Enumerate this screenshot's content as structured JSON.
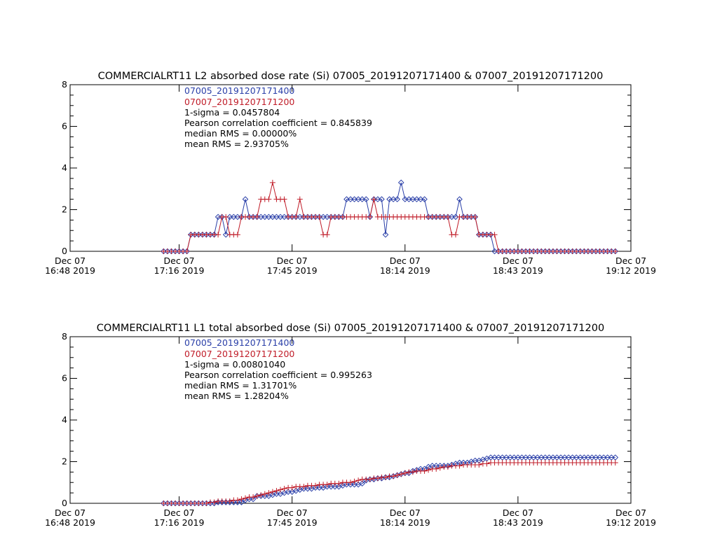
{
  "chart_data": [
    {
      "type": "line",
      "title": "COMMERCIALRT11 L2 absorbed dose rate (Si) 07005_20191207171400 & 07007_20191207171200",
      "xlabel": "",
      "ylabel": "",
      "xlim": [
        0,
        144
      ],
      "ylim": [
        0,
        8
      ],
      "grid": false,
      "legend_position": "top-left",
      "x_ticks": [
        {
          "value": 0,
          "label": "Dec 07\n16:48 2019"
        },
        {
          "value": 28,
          "label": "Dec 07\n17:16 2019"
        },
        {
          "value": 57,
          "label": "Dec 07\n17:45 2019"
        },
        {
          "value": 86,
          "label": "Dec 07\n18:14 2019"
        },
        {
          "value": 115,
          "label": "Dec 07\n18:43 2019"
        },
        {
          "value": 144,
          "label": "Dec 07\n19:12 2019"
        }
      ],
      "y_ticks": [
        0,
        2,
        4,
        6,
        8
      ],
      "annotations": [
        "1-sigma = 0.0457804",
        "Pearson correlation coefficient = 0.845839",
        "median RMS = 0.00000%",
        "mean RMS = 2.93705%"
      ],
      "series": [
        {
          "name": "07005_20191207171400",
          "color": "#2a3fa8",
          "marker": "diamond",
          "x": [
            24,
            25,
            26,
            27,
            28,
            29,
            30,
            31,
            32,
            33,
            34,
            35,
            36,
            37,
            38,
            39,
            40,
            41,
            42,
            43,
            44,
            45,
            46,
            47,
            48,
            49,
            50,
            51,
            52,
            53,
            54,
            55,
            56,
            57,
            58,
            59,
            60,
            61,
            62,
            63,
            64,
            65,
            66,
            67,
            68,
            69,
            70,
            71,
            72,
            73,
            74,
            75,
            76,
            77,
            78,
            79,
            80,
            81,
            82,
            83,
            84,
            85,
            86,
            87,
            88,
            89,
            90,
            91,
            92,
            93,
            94,
            95,
            96,
            97,
            98,
            99,
            100,
            101,
            102,
            103,
            104,
            105,
            106,
            107,
            108,
            109,
            110,
            111,
            112,
            113,
            114,
            115,
            116,
            117,
            118,
            119,
            120,
            121,
            122,
            123,
            124,
            125,
            126,
            127,
            128,
            129,
            130,
            131,
            132,
            133,
            134,
            135,
            136,
            137,
            138,
            139,
            140
          ],
          "y": [
            0,
            0,
            0,
            0,
            0,
            0,
            0,
            0.8,
            0.8,
            0.8,
            0.8,
            0.8,
            0.8,
            0.8,
            1.65,
            1.65,
            0.8,
            1.65,
            1.65,
            1.65,
            1.65,
            2.5,
            1.65,
            1.65,
            1.65,
            1.65,
            1.65,
            1.65,
            1.65,
            1.65,
            1.65,
            1.65,
            1.65,
            1.65,
            1.65,
            1.65,
            1.65,
            1.65,
            1.65,
            1.65,
            1.65,
            1.65,
            1.65,
            1.65,
            1.65,
            1.65,
            1.65,
            2.5,
            2.5,
            2.5,
            2.5,
            2.5,
            2.5,
            1.65,
            2.5,
            2.5,
            2.5,
            0.8,
            2.5,
            2.5,
            2.5,
            3.3,
            2.5,
            2.5,
            2.5,
            2.5,
            2.5,
            2.5,
            1.65,
            1.65,
            1.65,
            1.65,
            1.65,
            1.65,
            1.65,
            1.65,
            2.5,
            1.65,
            1.65,
            1.65,
            1.65,
            0.8,
            0.8,
            0.8,
            0.8,
            0,
            0,
            0,
            0,
            0,
            0,
            0,
            0,
            0,
            0,
            0,
            0,
            0,
            0,
            0,
            0,
            0,
            0,
            0,
            0,
            0,
            0,
            0,
            0,
            0,
            0,
            0,
            0,
            0,
            0,
            0,
            0
          ]
        },
        {
          "name": "07007_20191207171200",
          "color": "#c01c28",
          "marker": "plus",
          "x": [
            24,
            25,
            26,
            27,
            28,
            29,
            30,
            31,
            32,
            33,
            34,
            35,
            36,
            37,
            38,
            39,
            40,
            41,
            42,
            43,
            44,
            45,
            46,
            47,
            48,
            49,
            50,
            51,
            52,
            53,
            54,
            55,
            56,
            57,
            58,
            59,
            60,
            61,
            62,
            63,
            64,
            65,
            66,
            67,
            68,
            69,
            70,
            71,
            72,
            73,
            74,
            75,
            76,
            77,
            78,
            79,
            80,
            81,
            82,
            83,
            84,
            85,
            86,
            87,
            88,
            89,
            90,
            91,
            92,
            93,
            94,
            95,
            96,
            97,
            98,
            99,
            100,
            101,
            102,
            103,
            104,
            105,
            106,
            107,
            108,
            109,
            110,
            111,
            112,
            113,
            114,
            115,
            116,
            117,
            118,
            119,
            120,
            121,
            122,
            123,
            124,
            125,
            126,
            127,
            128,
            129,
            130,
            131,
            132,
            133,
            134,
            135,
            136,
            137,
            138,
            139,
            140
          ],
          "y": [
            0,
            0,
            0,
            0,
            0,
            0,
            0,
            0.8,
            0.8,
            0.8,
            0.8,
            0.8,
            0.8,
            0.8,
            0.8,
            1.65,
            1.65,
            0.8,
            0.8,
            0.8,
            1.65,
            1.65,
            1.65,
            1.65,
            1.65,
            2.5,
            2.5,
            2.5,
            3.3,
            2.5,
            2.5,
            2.5,
            1.65,
            1.65,
            1.65,
            2.5,
            1.65,
            1.65,
            1.65,
            1.65,
            1.65,
            0.8,
            0.8,
            1.65,
            1.65,
            1.65,
            1.65,
            1.65,
            1.65,
            1.65,
            1.65,
            1.65,
            1.65,
            1.65,
            2.5,
            1.65,
            1.65,
            1.65,
            1.65,
            1.65,
            1.65,
            1.65,
            1.65,
            1.65,
            1.65,
            1.65,
            1.65,
            1.65,
            1.65,
            1.65,
            1.65,
            1.65,
            1.65,
            1.65,
            0.8,
            0.8,
            1.65,
            1.65,
            1.65,
            1.65,
            1.65,
            0.8,
            0.8,
            0.8,
            0.8,
            0.8,
            0,
            0,
            0,
            0,
            0,
            0,
            0,
            0,
            0,
            0,
            0,
            0,
            0,
            0,
            0,
            0,
            0,
            0,
            0,
            0,
            0,
            0,
            0,
            0,
            0,
            0,
            0,
            0,
            0,
            0,
            0
          ]
        }
      ]
    },
    {
      "type": "line",
      "title": "COMMERCIALRT11 L1 total absorbed dose (Si) 07005_20191207171400 & 07007_20191207171200",
      "xlabel": "",
      "ylabel": "",
      "xlim": [
        0,
        144
      ],
      "ylim": [
        0,
        8
      ],
      "grid": false,
      "legend_position": "top-left",
      "x_ticks": [
        {
          "value": 0,
          "label": "Dec 07\n16:48 2019"
        },
        {
          "value": 28,
          "label": "Dec 07\n17:16 2019"
        },
        {
          "value": 57,
          "label": "Dec 07\n17:45 2019"
        },
        {
          "value": 86,
          "label": "Dec 07\n18:14 2019"
        },
        {
          "value": 115,
          "label": "Dec 07\n18:43 2019"
        },
        {
          "value": 144,
          "label": "Dec 07\n19:12 2019"
        }
      ],
      "y_ticks": [
        0,
        2,
        4,
        6,
        8
      ],
      "annotations": [
        "1-sigma = 0.00801040",
        "Pearson correlation coefficient = 0.995263",
        "median RMS = 1.31701%",
        "mean RMS = 1.28204%"
      ],
      "series": [
        {
          "name": "07005_20191207171400",
          "color": "#2a3fa8",
          "marker": "diamond",
          "x": [
            24,
            25,
            26,
            27,
            28,
            29,
            30,
            31,
            32,
            33,
            34,
            35,
            36,
            37,
            38,
            39,
            40,
            41,
            42,
            43,
            44,
            45,
            46,
            47,
            48,
            49,
            50,
            51,
            52,
            53,
            54,
            55,
            56,
            57,
            58,
            59,
            60,
            61,
            62,
            63,
            64,
            65,
            66,
            67,
            68,
            69,
            70,
            71,
            72,
            73,
            74,
            75,
            76,
            77,
            78,
            79,
            80,
            81,
            82,
            83,
            84,
            85,
            86,
            87,
            88,
            89,
            90,
            91,
            92,
            93,
            94,
            95,
            96,
            97,
            98,
            99,
            100,
            101,
            102,
            103,
            104,
            105,
            106,
            107,
            108,
            109,
            110,
            111,
            112,
            113,
            114,
            115,
            116,
            117,
            118,
            119,
            120,
            121,
            122,
            123,
            124,
            125,
            126,
            127,
            128,
            129,
            130,
            131,
            132,
            133,
            134,
            135,
            136,
            137,
            138,
            139,
            140
          ],
          "y": [
            0,
            0,
            0,
            0,
            0,
            0,
            0,
            0,
            0,
            0,
            0,
            0,
            0,
            0,
            0.05,
            0.05,
            0.05,
            0.05,
            0.05,
            0.05,
            0.05,
            0.15,
            0.2,
            0.2,
            0.35,
            0.35,
            0.35,
            0.35,
            0.4,
            0.45,
            0.45,
            0.5,
            0.55,
            0.55,
            0.6,
            0.65,
            0.7,
            0.7,
            0.7,
            0.75,
            0.75,
            0.75,
            0.8,
            0.8,
            0.8,
            0.8,
            0.85,
            0.9,
            0.9,
            0.9,
            0.9,
            0.95,
            1.1,
            1.15,
            1.15,
            1.2,
            1.2,
            1.25,
            1.25,
            1.3,
            1.35,
            1.4,
            1.45,
            1.45,
            1.55,
            1.6,
            1.65,
            1.65,
            1.75,
            1.8,
            1.8,
            1.8,
            1.8,
            1.8,
            1.85,
            1.9,
            1.95,
            1.95,
            1.95,
            2.0,
            2.05,
            2.05,
            2.1,
            2.15,
            2.2,
            2.2,
            2.2,
            2.2,
            2.2,
            2.2,
            2.2,
            2.2,
            2.2,
            2.2,
            2.2,
            2.2,
            2.2,
            2.2,
            2.2,
            2.2,
            2.2,
            2.2,
            2.2,
            2.2,
            2.2,
            2.2,
            2.2,
            2.2,
            2.2,
            2.2,
            2.2,
            2.2,
            2.2,
            2.2,
            2.2,
            2.2,
            2.2
          ]
        },
        {
          "name": "07007_20191207171200",
          "color": "#c01c28",
          "marker": "plus",
          "x": [
            24,
            25,
            26,
            27,
            28,
            29,
            30,
            31,
            32,
            33,
            34,
            35,
            36,
            37,
            38,
            39,
            40,
            41,
            42,
            43,
            44,
            45,
            46,
            47,
            48,
            49,
            50,
            51,
            52,
            53,
            54,
            55,
            56,
            57,
            58,
            59,
            60,
            61,
            62,
            63,
            64,
            65,
            66,
            67,
            68,
            69,
            70,
            71,
            72,
            73,
            74,
            75,
            76,
            77,
            78,
            79,
            80,
            81,
            82,
            83,
            84,
            85,
            86,
            87,
            88,
            89,
            90,
            91,
            92,
            93,
            94,
            95,
            96,
            97,
            98,
            99,
            100,
            101,
            102,
            103,
            104,
            105,
            106,
            107,
            108,
            109,
            110,
            111,
            112,
            113,
            114,
            115,
            116,
            117,
            118,
            119,
            120,
            121,
            122,
            123,
            124,
            125,
            126,
            127,
            128,
            129,
            130,
            131,
            132,
            133,
            134,
            135,
            136,
            137,
            138,
            139,
            140
          ],
          "y": [
            0,
            0,
            0,
            0,
            0,
            0,
            0,
            0,
            0,
            0,
            0,
            0,
            0.05,
            0.05,
            0.1,
            0.1,
            0.1,
            0.1,
            0.15,
            0.15,
            0.2,
            0.25,
            0.3,
            0.3,
            0.35,
            0.4,
            0.45,
            0.5,
            0.55,
            0.6,
            0.65,
            0.7,
            0.75,
            0.75,
            0.8,
            0.8,
            0.8,
            0.85,
            0.85,
            0.85,
            0.9,
            0.9,
            0.9,
            0.95,
            0.95,
            0.95,
            1.0,
            1.0,
            1.0,
            1.05,
            1.1,
            1.15,
            1.15,
            1.15,
            1.2,
            1.2,
            1.25,
            1.25,
            1.3,
            1.3,
            1.35,
            1.4,
            1.45,
            1.5,
            1.5,
            1.55,
            1.55,
            1.55,
            1.6,
            1.65,
            1.65,
            1.7,
            1.75,
            1.75,
            1.8,
            1.8,
            1.8,
            1.85,
            1.85,
            1.85,
            1.85,
            1.85,
            1.9,
            1.9,
            1.95,
            1.95,
            1.95,
            1.95,
            1.95,
            1.95,
            1.95,
            1.95,
            1.95,
            1.95,
            1.95,
            1.95,
            1.95,
            1.95,
            1.95,
            1.95,
            1.95,
            1.95,
            1.95,
            1.95,
            1.95,
            1.95,
            1.95,
            1.95,
            1.95,
            1.95,
            1.95,
            1.95,
            1.95,
            1.95,
            1.95,
            1.95,
            1.95
          ]
        }
      ]
    }
  ]
}
